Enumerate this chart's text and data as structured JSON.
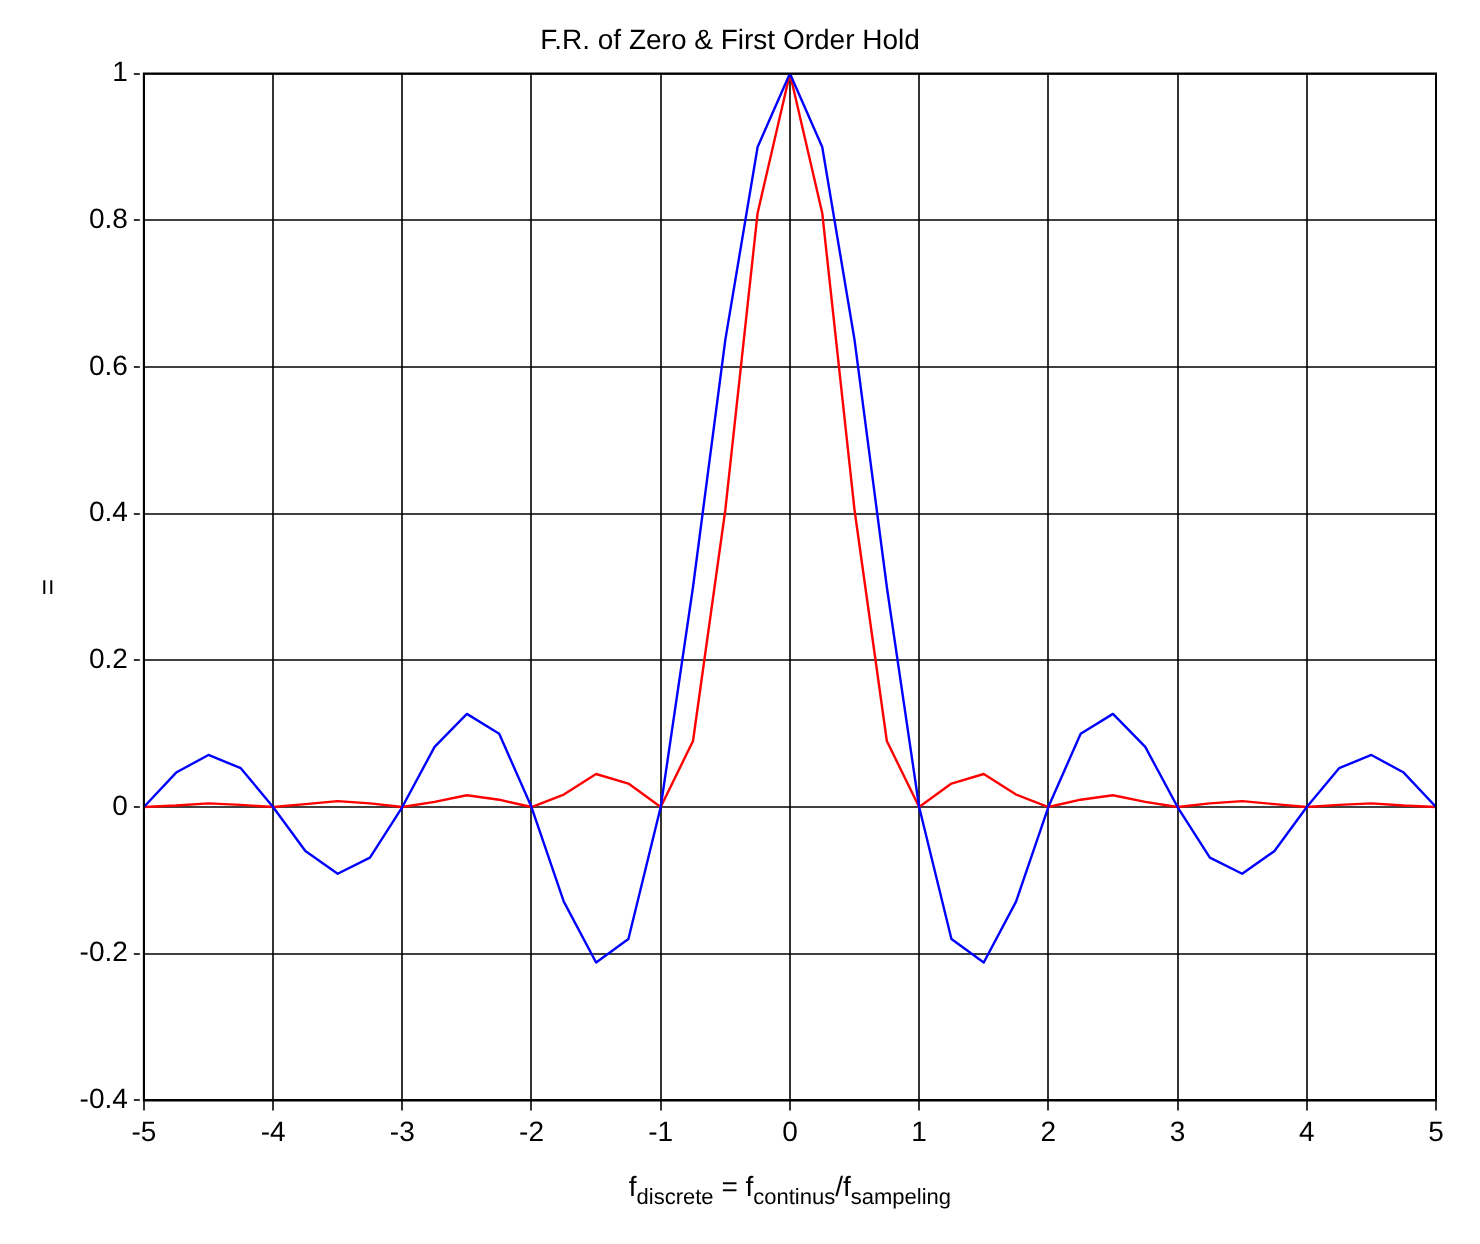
{
  "chart_data": {
    "type": "line",
    "title": "F.R. of Zero & First Order Hold",
    "xlabel": "f$_{discrete}$ = f$_{continus}$/f$_{sampeling}$",
    "ylabel": "=",
    "x": [
      -5,
      -4.75,
      -4.5,
      -4.25,
      -4,
      -3.75,
      -3.5,
      -3.25,
      -3,
      -2.75,
      -2.5,
      -2.25,
      -2,
      -1.75,
      -1.5,
      -1.25,
      -1,
      -0.75,
      -0.5,
      -0.25,
      0,
      0.25,
      0.5,
      0.75,
      1,
      1.25,
      1.5,
      1.75,
      2,
      2.25,
      2.5,
      2.75,
      3,
      3.25,
      3.5,
      3.75,
      4,
      4.25,
      4.5,
      4.75,
      5
    ],
    "series": [
      {
        "color": "#0000ff",
        "values": [
          0,
          0.047,
          0.071,
          0.053,
          0,
          -0.06,
          -0.091,
          -0.069,
          0,
          0.082,
          0.127,
          0.1,
          0,
          -0.129,
          -0.212,
          -0.18,
          0,
          0.3,
          0.637,
          0.9,
          1,
          0.9,
          0.637,
          0.3,
          0,
          -0.18,
          -0.212,
          -0.129,
          0,
          0.1,
          0.127,
          0.082,
          0,
          -0.069,
          -0.091,
          -0.06,
          0,
          0.053,
          0.071,
          0.047,
          0
        ]
      },
      {
        "color": "#ff0000",
        "values": [
          0,
          0.002,
          0.005,
          0.003,
          0,
          0.004,
          0.008,
          0.005,
          0,
          0.007,
          0.016,
          0.01,
          0,
          0.017,
          0.045,
          0.032,
          0,
          0.09,
          0.405,
          0.81,
          1,
          0.81,
          0.405,
          0.09,
          0,
          0.032,
          0.045,
          0.017,
          0,
          0.01,
          0.016,
          0.007,
          0,
          0.005,
          0.008,
          0.004,
          0,
          0.003,
          0.005,
          0.002,
          0
        ]
      }
    ],
    "xlim": [
      -5,
      5
    ],
    "xticks": [
      -5,
      -4,
      -3,
      -2,
      -1,
      0,
      1,
      2,
      3,
      4,
      5
    ],
    "ylim": [
      -0.4,
      1
    ],
    "yticks": [
      -0.4,
      -0.2,
      0,
      0.2,
      0.4,
      0.6,
      0.8,
      1
    ],
    "grid": true,
    "legend": false,
    "marker": "none",
    "line_style": "solid"
  }
}
